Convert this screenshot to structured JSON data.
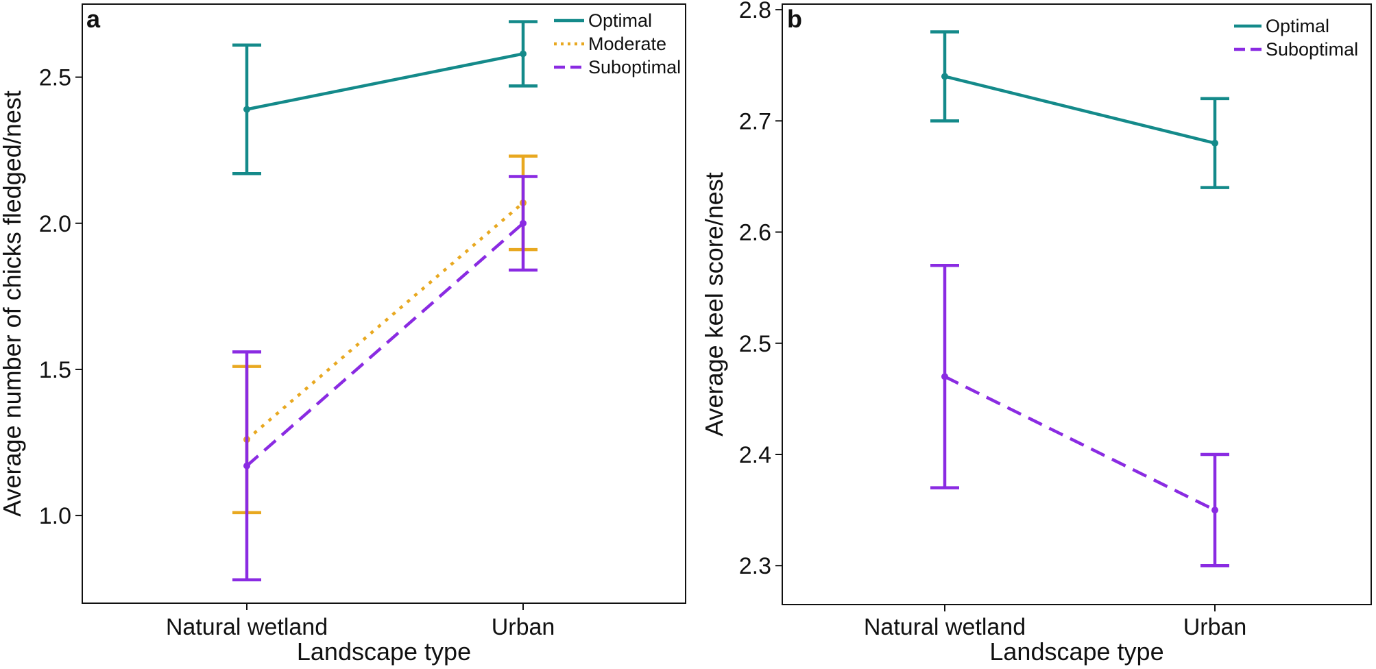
{
  "chart_data": [
    {
      "type": "line",
      "panel_label": "a",
      "xlabel": "Landscape type",
      "ylabel": "Average number of chicks fledged/nest",
      "categories": [
        "Natural wetland",
        "Urban"
      ],
      "ylim": [
        0.7,
        2.75
      ],
      "yticks": [
        1.0,
        1.5,
        2.0,
        2.5
      ],
      "ytick_labels": [
        "1.0",
        "1.5",
        "2.0",
        "2.5"
      ],
      "legend": "top-right",
      "grid": false,
      "series": [
        {
          "name": "Optimal",
          "color": "#148a8a",
          "style": "solid",
          "values": [
            2.39,
            2.58
          ],
          "lower": [
            2.17,
            2.47
          ],
          "upper": [
            2.61,
            2.69
          ]
        },
        {
          "name": "Moderate",
          "color": "#e8a820",
          "style": "dotted",
          "values": [
            1.26,
            2.07
          ],
          "lower": [
            1.01,
            1.91
          ],
          "upper": [
            1.51,
            2.23
          ]
        },
        {
          "name": "Suboptimal",
          "color": "#8a2be2",
          "style": "dashed",
          "values": [
            1.17,
            2.0
          ],
          "lower": [
            0.78,
            1.84
          ],
          "upper": [
            1.56,
            2.16
          ]
        }
      ]
    },
    {
      "type": "line",
      "panel_label": "b",
      "xlabel": "Landscape type",
      "ylabel": "Average keel score/nest",
      "categories": [
        "Natural wetland",
        "Urban"
      ],
      "ylim": [
        2.265,
        2.805
      ],
      "yticks": [
        2.3,
        2.4,
        2.5,
        2.6,
        2.7,
        2.8
      ],
      "ytick_labels": [
        "2.3",
        "2.4",
        "2.5",
        "2.6",
        "2.7",
        "2.8"
      ],
      "legend": "top-right",
      "grid": false,
      "series": [
        {
          "name": "Optimal",
          "color": "#148a8a",
          "style": "solid",
          "values": [
            2.74,
            2.68
          ],
          "lower": [
            2.7,
            2.64
          ],
          "upper": [
            2.78,
            2.72
          ]
        },
        {
          "name": "Suboptimal",
          "color": "#8a2be2",
          "style": "dashed",
          "values": [
            2.47,
            2.35
          ],
          "lower": [
            2.37,
            2.3
          ],
          "upper": [
            2.57,
            2.4
          ]
        }
      ]
    }
  ]
}
